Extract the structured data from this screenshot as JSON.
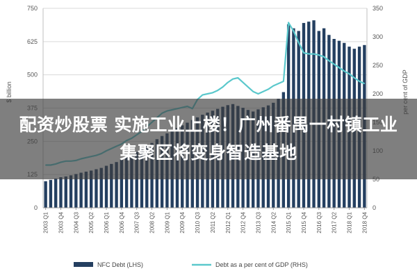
{
  "headline": "配资炒股票 实施工业上楼！广州番禺一村镇工业集聚区将变身智造基地",
  "chart_data": {
    "type": "bar",
    "title": "",
    "xlabel": "",
    "ylabel": "$ billion",
    "y2label": "per cent of GDP",
    "ylim": [
      0,
      750
    ],
    "y2lim": [
      0,
      350
    ],
    "yticks": [
      "0",
      "125",
      "250",
      "375",
      "500",
      "625",
      "750"
    ],
    "y2ticks": [
      "0",
      "50",
      "100",
      "150",
      "200",
      "250",
      "300",
      "350"
    ],
    "grid": true,
    "legend_position": "bottom",
    "categories": [
      "2003 Q1",
      "2003 Q2",
      "2003 Q3",
      "2003 Q4",
      "2004 Q1",
      "2004 Q2",
      "2004 Q3",
      "2004 Q4",
      "2005 Q1",
      "2005 Q2",
      "2005 Q3",
      "2005 Q4",
      "2006 Q1",
      "2006 Q2",
      "2006 Q3",
      "2006 Q4",
      "2007 Q1",
      "2007 Q2",
      "2007 Q3",
      "2007 Q4",
      "2008 Q1",
      "2008 Q2",
      "2008 Q3",
      "2008 Q4",
      "2009 Q1",
      "2009 Q2",
      "2009 Q3",
      "2009 Q4",
      "2010 Q1",
      "2010 Q2",
      "2010 Q3",
      "2010 Q4",
      "2011 Q1",
      "2011 Q2",
      "2011 Q3",
      "2011 Q4",
      "2012 Q1",
      "2012 Q2",
      "2012 Q3",
      "2012 Q4",
      "2013 Q1",
      "2013 Q2",
      "2013 Q3",
      "2013 Q4",
      "2014 Q1",
      "2014 Q2",
      "2014 Q3",
      "2014 Q4",
      "2015 Q1",
      "2015 Q2",
      "2015 Q3",
      "2015 Q4",
      "2016 Q1",
      "2016 Q2",
      "2016 Q3",
      "2016 Q4",
      "2017 Q1",
      "2017 Q2",
      "2017 Q3",
      "2017 Q4",
      "2018 Q1",
      "2018 Q2",
      "2018 Q3",
      "2018 Q4"
    ],
    "tick_labels": [
      "2003 Q1",
      "2003 Q4",
      "2004 Q3",
      "2005 Q2",
      "2006 Q1",
      "2006 Q4",
      "2007 Q3",
      "2008 Q2",
      "2009 Q1",
      "2009 Q4",
      "2010 Q3",
      "2011 Q2",
      "2012 Q1",
      "2012 Q4",
      "2013 Q3",
      "2014 Q2",
      "2015 Q1",
      "2015 Q4",
      "2016 Q3",
      "2017 Q2",
      "2018 Q1",
      "2018 Q4"
    ],
    "series": [
      {
        "name": "NFC Debt (LHS)",
        "type": "bar",
        "axis": "left",
        "color": "#243f60",
        "values": [
          100,
          105,
          110,
          115,
          118,
          122,
          127,
          132,
          136,
          140,
          145,
          150,
          158,
          165,
          172,
          180,
          190,
          200,
          210,
          220,
          232,
          244,
          258,
          270,
          280,
          290,
          300,
          310,
          320,
          330,
          340,
          350,
          358,
          365,
          372,
          380,
          386,
          390,
          383,
          376,
          368,
          362,
          370,
          378,
          385,
          395,
          410,
          435,
          690,
          675,
          665,
          695,
          700,
          705,
          665,
          675,
          650,
          635,
          628,
          620,
          606,
          598,
          606,
          612
        ]
      },
      {
        "name": "Debt as a per cent of GDP (RHS)",
        "type": "line",
        "axis": "right",
        "color": "#5bc8cc",
        "values": [
          75,
          75,
          77,
          80,
          82,
          82,
          83,
          86,
          88,
          90,
          92,
          95,
          100,
          104,
          108,
          112,
          118,
          122,
          128,
          134,
          142,
          150,
          158,
          166,
          170,
          172,
          174,
          176,
          178,
          174,
          190,
          198,
          200,
          202,
          206,
          212,
          220,
          226,
          228,
          220,
          212,
          204,
          200,
          204,
          208,
          214,
          218,
          222,
          325,
          310,
          290,
          272,
          270,
          270,
          268,
          265,
          258,
          252,
          246,
          240,
          235,
          228,
          222,
          218
        ]
      }
    ]
  }
}
